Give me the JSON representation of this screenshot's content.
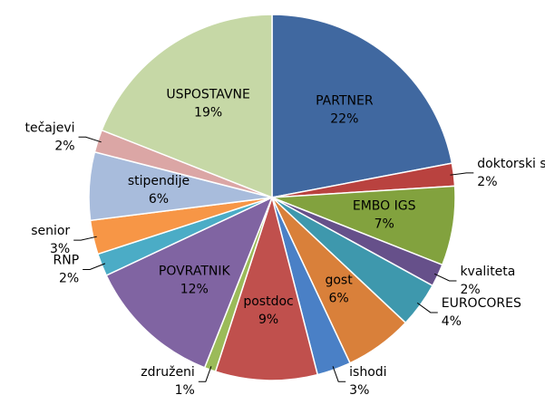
{
  "chart_data": {
    "type": "pie",
    "categories": [
      "PARTNER",
      "doktorski studiji",
      "EMBO IGS",
      "kvaliteta",
      "EUROCORES",
      "gost",
      "ishodi",
      "postdoc",
      "združeni",
      "POVRATNIK",
      "RNP",
      "senior",
      "stipendije",
      "tečajevi",
      "USPOSTAVNE"
    ],
    "values": [
      22,
      2,
      7,
      2,
      4,
      6,
      3,
      9,
      1,
      12,
      2,
      3,
      6,
      2,
      19
    ],
    "value_labels": [
      "22%",
      "2%",
      "7%",
      "2%",
      "4%",
      "6%",
      "3%",
      "9%",
      "1%",
      "12%",
      "2%",
      "3%",
      "6%",
      "2%",
      "19%"
    ],
    "colors": [
      "#4068a0",
      "#b9423f",
      "#82a23e",
      "#66508a",
      "#3e98ad",
      "#d9803a",
      "#4a80c6",
      "#c0504d",
      "#9bbb59",
      "#8064a2",
      "#4bacc6",
      "#f79646",
      "#a8bcdc",
      "#dba6a5",
      "#c6d8a6"
    ]
  }
}
